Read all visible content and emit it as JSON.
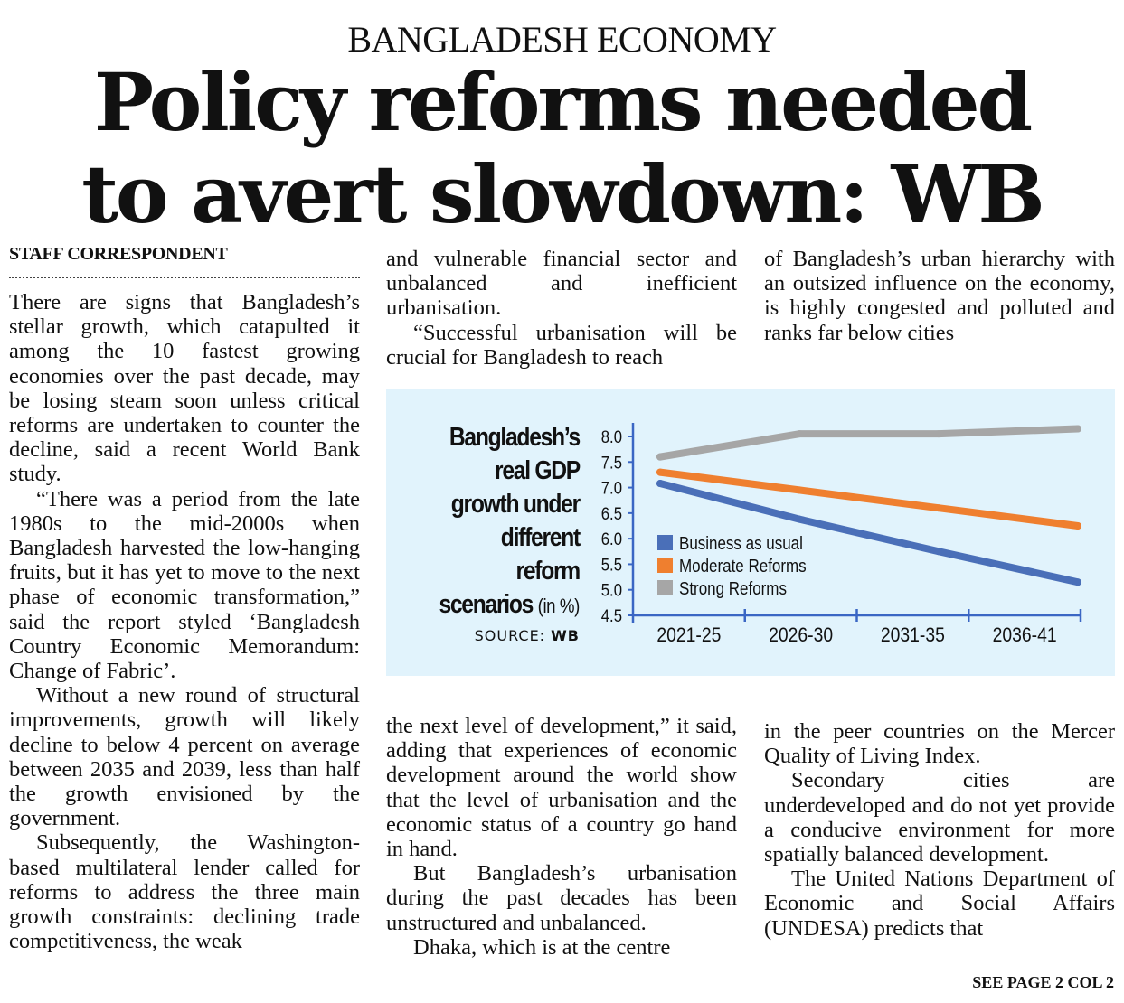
{
  "kicker": "BANGLADESH ECONOMY",
  "headline": {
    "line1": "Policy reforms needed",
    "line2": "to avert slowdown: WB"
  },
  "byline": "STAFF CORRESPONDENT",
  "columns": {
    "col1": [
      "There are signs that Bangladesh’s stellar growth, which catapulted it among the 10 fastest growing economies over the past decade, may be losing steam soon unless critical reforms are undertaken to counter the decline, said a recent World Bank study.",
      "“There was a period from the late 1980s to the mid-2000s when Bangladesh harvested the low-hanging fruits, but it has yet to move to the next phase of economic transformation,” said the report styled ‘Bangladesh Country Economic Memorandum: Change of Fabric’.",
      "Without a new round of structural improvements, growth will likely decline to below 4 percent on average between 2035 and 2039, less than half the growth envisioned by the government.",
      "Subsequently, the Washington-based multilateral lender called for reforms to address the three main growth constraints: declining trade competitiveness, the weak"
    ],
    "col2_top": [
      "and vulnerable financial sector and unbalanced and inefficient urbanisation.",
      "“Successful urbanisation will be crucial for Bangladesh to reach"
    ],
    "col3_top": [
      "of Bangladesh’s urban hierarchy with an outsized influence on the economy, is highly congested and polluted and ranks far below cities"
    ],
    "col2_bottom": [
      "the next level of development,” it said, adding that experiences of economic development around the world show that the level of urbanisation and the economic status of a country go hand in hand.",
      "But Bangladesh’s urbanisation during the past decades has been unstructured and unbalanced.",
      "Dhaka, which is at the centre"
    ],
    "col3_bottom": [
      "in the peer countries on the Mercer Quality of Living Index.",
      "Secondary cities are underdeveloped and do not yet provide a conducive environment for more spatially balanced development.",
      "The United Nations Department of Economic and Social Affairs (UNDESA) predicts that"
    ]
  },
  "see_page": "SEE PAGE 2 COL 2",
  "chart_data": {
    "type": "line",
    "title_lines": [
      "Bangladesh’s",
      "real GDP",
      "growth under",
      "different",
      "reform",
      "scenarios"
    ],
    "title_unit": "(in %)",
    "source_label": "SOURCE:",
    "source_value": "WB",
    "categories": [
      "2021-25",
      "2026-30",
      "2031-35",
      "2036-41"
    ],
    "ylim": [
      4.5,
      8.0
    ],
    "yticks": [
      "8.0",
      "7.5",
      "7.0",
      "6.5",
      "6.0",
      "5.5",
      "5.0",
      "4.5"
    ],
    "grid": false,
    "legend_position": "lower-left",
    "series": [
      {
        "name": "Business as usual",
        "color": "#4a6fb8",
        "values": [
          7.08,
          6.38,
          5.75,
          5.15
        ]
      },
      {
        "name": "Moderate Reforms",
        "color": "#ef7f2f",
        "values": [
          7.3,
          6.95,
          6.6,
          6.25
        ]
      },
      {
        "name": "Strong Reforms",
        "color": "#a6a6a6",
        "values": [
          7.6,
          8.05,
          8.05,
          8.15
        ]
      }
    ],
    "axis_color": "#3a66c4",
    "background": "#e1f3fc"
  }
}
